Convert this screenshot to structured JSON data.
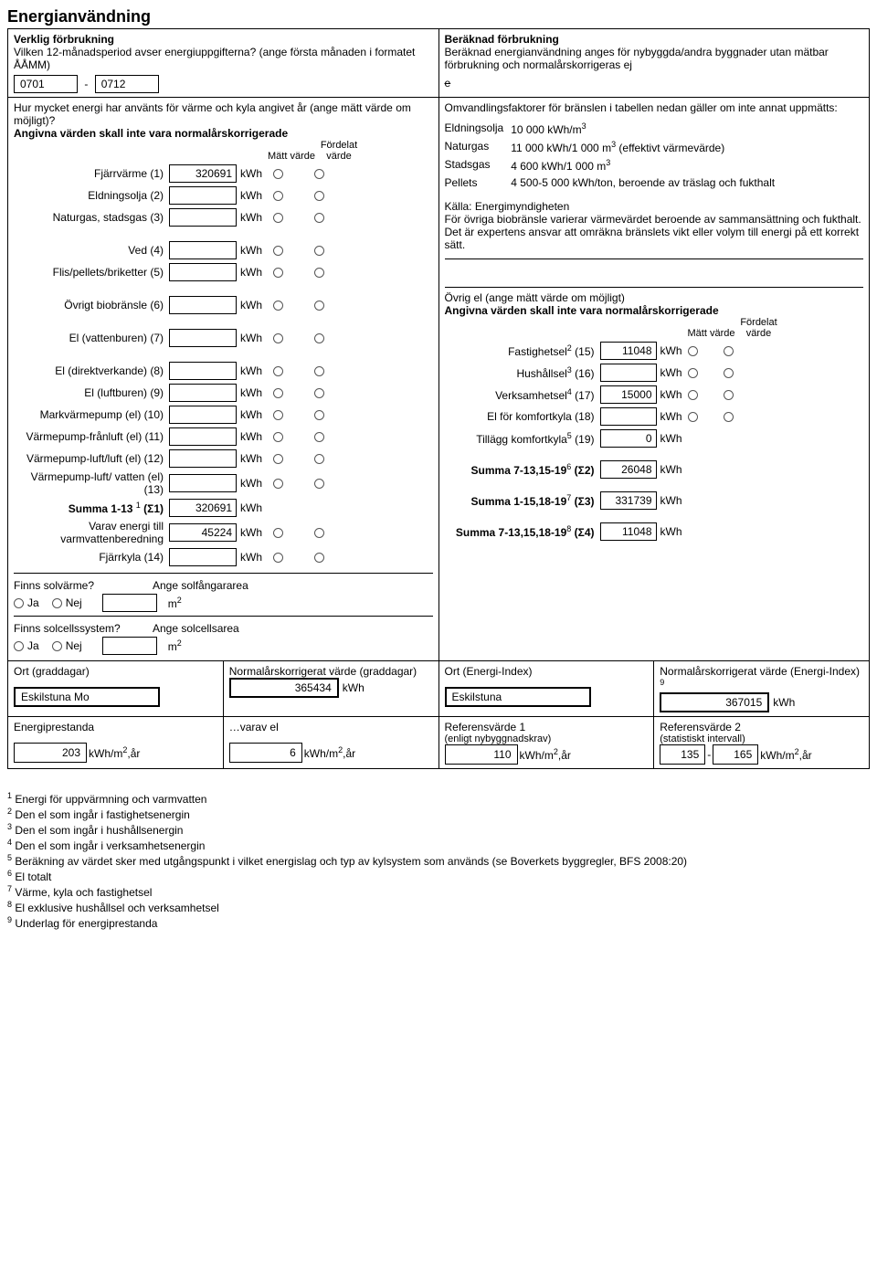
{
  "title": "Energianvändning",
  "left_header": {
    "line1": "Verklig förbrukning",
    "line2": "Vilken 12-månadsperiod avser energiuppgifterna? (ange första månaden i formatet ÅÅMM)",
    "period_from": "0701",
    "period_to": "0712"
  },
  "right_header": {
    "line1": "Beräknad förbrukning",
    "line2": "Beräknad energianvändning anges för nybyggda/andra byggnader utan mätbar förbrukning och normalårskorrigeras ej",
    "strike_e": "e"
  },
  "question": "Hur mycket energi har använts för värme och kyla angivet år (ange mätt värde om möjligt)?",
  "subnote": "Angivna värden skall inte vara normalårskorrigerade",
  "col_h1": "Mätt värde",
  "col_h2": "Fördelat värde",
  "unit_kwh": "kWh",
  "energy_rows": [
    {
      "label": "Fjärrvärme (1)",
      "value": "320691"
    },
    {
      "label": "Eldningsolja (2)",
      "value": ""
    },
    {
      "label": "Naturgas, stadsgas (3)",
      "value": ""
    },
    {
      "label": "Ved (4)",
      "value": ""
    },
    {
      "label": "Flis/pellets/briketter (5)",
      "value": ""
    },
    {
      "label": "Övrigt biobränsle (6)",
      "value": ""
    },
    {
      "label": "El (vattenburen) (7)",
      "value": ""
    },
    {
      "label": "El (direktverkande) (8)",
      "value": ""
    },
    {
      "label": "El (luftburen) (9)",
      "value": ""
    },
    {
      "label": "Markvärmepump (el) (10)",
      "value": ""
    },
    {
      "label": "Värmepump-frånluft (el) (11)",
      "value": ""
    },
    {
      "label": "Värmepump-luft/luft (el) (12)",
      "value": ""
    },
    {
      "label": "Värmepump-luft/ vatten (el) (13)",
      "value": ""
    }
  ],
  "summa_rows": [
    {
      "label_html": "Summa 1-13 ",
      "sup": "1",
      "tail": " (Σ1)",
      "value": "320691",
      "radios": false
    },
    {
      "label_html": "Varav energi till varmvattenberedning",
      "sup": "",
      "tail": "",
      "value": "45224",
      "radios": true
    },
    {
      "label_html": "Fjärrkyla (14)",
      "sup": "",
      "tail": "",
      "value": "",
      "radios": true
    }
  ],
  "conversion": {
    "intro": "Omvandlingsfaktorer för bränslen i tabellen nedan gäller om inte annat uppmätts:",
    "rows": [
      {
        "n": "Eldningsolja",
        "v": "10 000 kWh/m",
        "sup": "3",
        "tail": ""
      },
      {
        "n": "Naturgas",
        "v": "11 000 kWh/1 000 m",
        "sup": "3",
        "tail": " (effektivt värmevärde)"
      },
      {
        "n": "Stadsgas",
        "v": "4 600 kWh/1 000 m",
        "sup": "3",
        "tail": ""
      },
      {
        "n": "Pellets",
        "v": "4 500-5 000 kWh/ton, beroende av träslag och fukthalt",
        "sup": "",
        "tail": ""
      }
    ],
    "source": "Källa: Energimyndigheten",
    "note": "För övriga biobränsle varierar värmevärdet beroende av sammansättning och fukthalt. Det är expertens ansvar att omräkna bränslets vikt eller volym till energi på ett korrekt sätt."
  },
  "ovrig_el": {
    "title": "Övrig el (ange mätt värde om möjligt)",
    "sub": "Angivna värden skall inte vara normalårskorrigerade",
    "col_h1": "Mätt värde",
    "col_h2": "Fördelat värde",
    "rows": [
      {
        "label": "Fastighetsel",
        "sup": "2",
        "n": " (15)",
        "value": "11048",
        "radios": true
      },
      {
        "label": "Hushållsel",
        "sup": "3",
        "n": " (16)",
        "value": "",
        "radios": true
      },
      {
        "label": "Verksamhetsel",
        "sup": "4",
        "n": " (17)",
        "value": "15000",
        "radios": true
      },
      {
        "label": "El för komfortkyla (18)",
        "sup": "",
        "n": "",
        "value": "",
        "radios": true
      },
      {
        "label": "Tillägg komfortkyla",
        "sup": "5",
        "n": " (19)",
        "value": "0",
        "radios": false
      },
      {
        "label": "Summa 7-13,15-19",
        "sup": "6",
        "n": " (Σ2)",
        "value": "26048",
        "radios": false
      },
      {
        "label": "Summa 1-15,18-19",
        "sup": "7",
        "n": " (Σ3)",
        "value": "331739",
        "radios": false
      },
      {
        "label": "Summa 7-13,15,18-19",
        "sup": "8",
        "n": " (Σ4)",
        "value": "11048",
        "radios": false
      }
    ]
  },
  "solar": {
    "q1": "Finns solvärme?",
    "q2": "Finns solcellssystem?",
    "ja": "Ja",
    "nej": "Nej",
    "a1": "Ange solfångararea",
    "a2": "Ange solcellsarea",
    "unit": "m",
    "sup": "2"
  },
  "bottom": {
    "ort_grad": "Ort (graddagar)",
    "norm_grad": "Normalårskorrigerat värde (graddagar)",
    "ort_grad_v": "Eskilstuna Mo",
    "norm_grad_v": "365434",
    "ort_ei": "Ort (Energi-Index)",
    "norm_ei": "Normalårskorrigerat värde (Energi-Index)",
    "norm_ei_sup": "9",
    "ort_ei_v": "Eskilstuna",
    "norm_ei_v": "367015",
    "eprest": "Energiprestanda",
    "varav_el": "…varav el",
    "ref1": "Referensvärde 1",
    "ref1_sub": "(enligt nybyggnadskrav)",
    "ref2": "Referensvärde 2",
    "ref2_sub": "(statistiskt intervall)",
    "eprest_v": "203",
    "varav_el_v": "6",
    "ref1_v": "110",
    "ref2_from": "135",
    "ref2_to": "165",
    "unit_kwhm2": "kWh/m",
    "unit_sup": "2",
    "unit_tail": ",år",
    "unit_kwh": "kWh"
  },
  "footnotes": [
    {
      "n": "1",
      "t": "Energi för uppvärmning och varmvatten"
    },
    {
      "n": "2",
      "t": "Den el som ingår i fastighetsenergin"
    },
    {
      "n": "3",
      "t": "Den el som ingår i hushållsenergin"
    },
    {
      "n": "4",
      "t": "Den el som ingår i verksamhetsenergin"
    },
    {
      "n": "5",
      "t": "Beräkning av värdet sker med utgångspunkt i vilket energislag och typ av kylsystem som används (se Boverkets byggregler, BFS 2008:20)"
    },
    {
      "n": "6",
      "t": "El totalt"
    },
    {
      "n": "7",
      "t": "Värme, kyla och fastighetsel"
    },
    {
      "n": "8",
      "t": "El exklusive hushållsel och verksamhetsel"
    },
    {
      "n": "9",
      "t": "Underlag för energiprestanda"
    }
  ]
}
